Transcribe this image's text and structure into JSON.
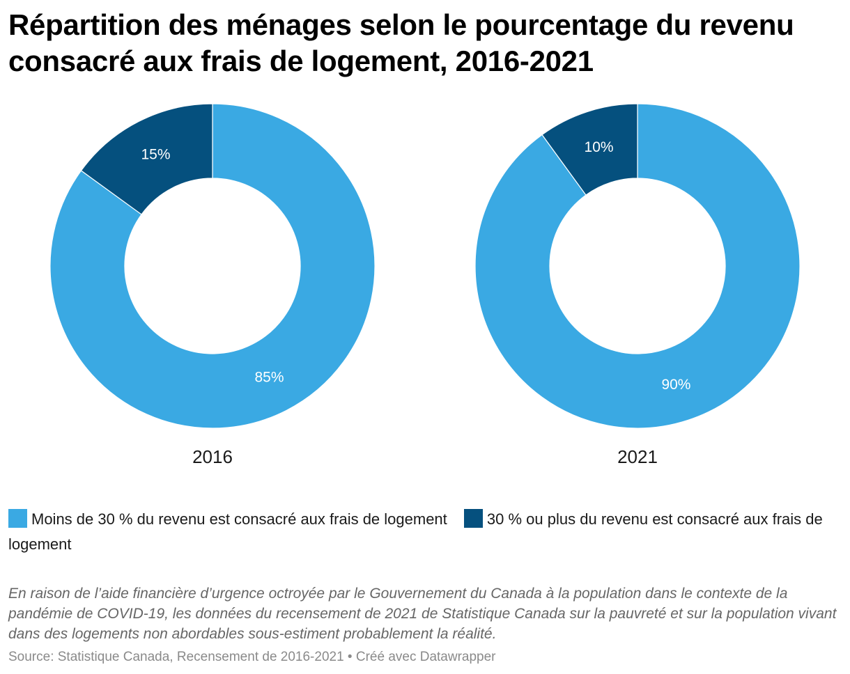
{
  "title": "Répartition des ménages selon le pourcentage du revenu consacré aux frais de logement, 2016-2021",
  "colors": {
    "light_blue": "#3aa9e3",
    "dark_blue": "#05507e"
  },
  "legend": [
    {
      "label": "Moins de 30 % du revenu est consacré aux frais de logement",
      "color": "#3aa9e3"
    },
    {
      "label": "30 % ou plus du revenu est consacré aux frais de logement",
      "color": "#05507e"
    }
  ],
  "chart_data": [
    {
      "type": "pie",
      "subtype": "donut",
      "label": "2016",
      "slices": [
        {
          "name": "Moins de 30 % du revenu est consacré aux frais de logement",
          "value": 85,
          "label": "85%",
          "color": "#3aa9e3"
        },
        {
          "name": "30 % ou plus du revenu est consacré aux frais de logement",
          "value": 15,
          "label": "15%",
          "color": "#05507e"
        }
      ]
    },
    {
      "type": "pie",
      "subtype": "donut",
      "label": "2021",
      "slices": [
        {
          "name": "Moins de 30 % du revenu est consacré aux frais de logement",
          "value": 90,
          "label": "90%",
          "color": "#3aa9e3"
        },
        {
          "name": "30 % ou plus du revenu est consacré aux frais de logement",
          "value": 10,
          "label": "10%",
          "color": "#05507e"
        }
      ]
    }
  ],
  "note": "En raison de l’aide financière d’urgence octroyée par le Gouvernement du Canada à la population dans le contexte de la pandémie de COVID-19, les données du recensement de 2021 de Statistique Canada sur la pauvreté et sur la population vivant dans des logements non abordables sous-estiment probablement la réalité.",
  "source": "Source: Statistique Canada, Recensement de 2016-2021 • Créé avec Datawrapper"
}
